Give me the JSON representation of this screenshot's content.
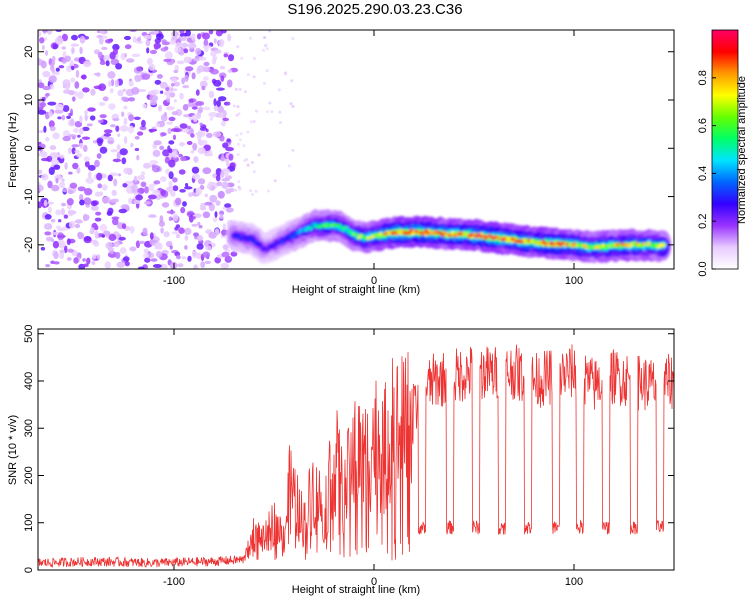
{
  "title": "S196.2025.290.03.23.C36",
  "chart_data": [
    {
      "type": "heatmap",
      "title": "S196.2025.290.03.23.C36",
      "xlabel": "Height of straight line (km)",
      "ylabel": "Frequency (Hz)",
      "xlim": [
        -168,
        150
      ],
      "ylim": [
        -25,
        24.5
      ],
      "xticks": [
        -100,
        0,
        100
      ],
      "xtick_labels": [
        "-100",
        "0",
        "100"
      ],
      "yticks": [
        -20,
        -10,
        0,
        10,
        20
      ],
      "ytick_labels": [
        "-20",
        "-10",
        "0",
        "10",
        "20"
      ],
      "colorbar": {
        "label": "Normalized spectral amplitude",
        "range": [
          0,
          1
        ],
        "ticks": [
          0.0,
          0.2,
          0.4,
          0.6,
          0.8
        ],
        "tick_labels": [
          "0.0",
          "0.2",
          "0.4",
          "0.6",
          "0.8"
        ],
        "colors": [
          "#ffffff",
          "#e8ccff",
          "#9933ff",
          "#3300ff",
          "#0066ff",
          "#00e5ff",
          "#00ff66",
          "#66ff00",
          "#ffff00",
          "#ff9900",
          "#ff0000",
          "#ff0066"
        ]
      },
      "noise_region_x": [
        -168,
        -70
      ],
      "ridge": {
        "x": [
          -70,
          -65,
          -60,
          -55,
          -50,
          -45,
          -40,
          -35,
          -30,
          -25,
          -20,
          -15,
          -10,
          -5,
          0,
          10,
          20,
          30,
          40,
          50,
          60,
          70,
          80,
          90,
          100,
          110,
          120,
          130,
          140,
          146
        ],
        "y": [
          -18,
          -18.5,
          -19,
          -21,
          -20,
          -19,
          -18,
          -17,
          -16,
          -16,
          -16,
          -16.5,
          -18,
          -18.5,
          -18.2,
          -17.5,
          -17.3,
          -17.5,
          -17.8,
          -18,
          -18.5,
          -19,
          -19.5,
          -19.8,
          -20,
          -20.5,
          -20.2,
          -20,
          -20.1,
          -20.3
        ],
        "intensity": [
          0.3,
          0.3,
          0.3,
          0.25,
          0.25,
          0.3,
          0.35,
          0.4,
          0.5,
          0.55,
          0.6,
          0.55,
          0.6,
          0.65,
          0.7,
          0.85,
          0.9,
          0.85,
          0.8,
          0.85,
          0.9,
          0.85,
          0.8,
          0.85,
          0.75,
          0.7,
          0.75,
          0.75,
          0.7,
          0.7
        ]
      }
    },
    {
      "type": "line",
      "xlabel": "Height of straight line (km)",
      "ylabel": "SNR (10 * v/v)",
      "xlim": [
        -168,
        150
      ],
      "ylim": [
        0,
        510
      ],
      "xticks": [
        -100,
        0,
        100
      ],
      "xtick_labels": [
        "-100",
        "0",
        "100"
      ],
      "yticks": [
        0,
        100,
        200,
        300,
        400,
        500
      ],
      "ytick_labels": [
        "0",
        "100",
        "200",
        "300",
        "400",
        "500"
      ],
      "color": "#ee3333",
      "series": [
        {
          "name": "SNR",
          "x": [
            -168,
            -140,
            -110,
            -80,
            -65,
            -60,
            -55,
            -50,
            -45,
            -42,
            -40,
            -35,
            -30,
            -25,
            -20,
            -15,
            -10,
            -5,
            0,
            5,
            10,
            15,
            20,
            25,
            30,
            40,
            50,
            60,
            70,
            80,
            90,
            100,
            110,
            120,
            130,
            140,
            150
          ],
          "values": [
            15,
            18,
            15,
            18,
            22,
            80,
            60,
            100,
            70,
            180,
            150,
            100,
            180,
            120,
            250,
            150,
            260,
            230,
            280,
            250,
            300,
            290,
            330,
            380,
            400,
            410,
            420,
            415,
            420,
            400,
            410,
            420,
            390,
            410,
            400,
            390,
            400
          ],
          "dip_x": [
            24,
            38,
            51,
            64,
            77,
            91,
            103,
            116,
            130,
            143
          ],
          "dip_value": 90
        }
      ]
    }
  ]
}
